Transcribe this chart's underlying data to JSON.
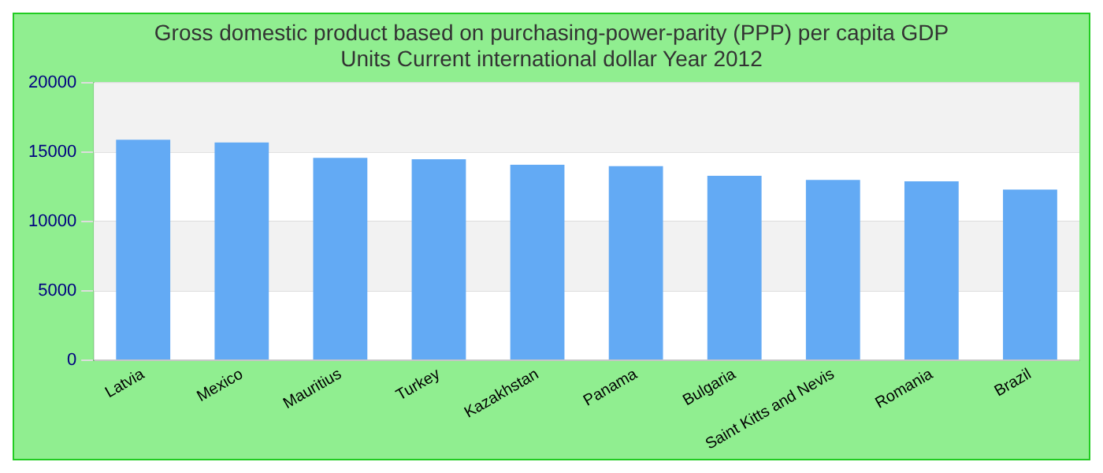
{
  "chart_data": {
    "type": "bar",
    "title": "Gross domestic product based on purchasing-power-parity (PPP) per capita GDP Units Current international dollar Year 2012",
    "categories": [
      "Latvia",
      "Mexico",
      "Mauritius",
      "Turkey",
      "Kazakhstan",
      "Panama",
      "Bulgaria",
      "Saint Kitts and Nevis",
      "Romania",
      "Brazil"
    ],
    "values": [
      15900,
      15700,
      14600,
      14500,
      14100,
      14000,
      13300,
      13000,
      12900,
      12300
    ],
    "color": "#63aaf4",
    "ylim": [
      0,
      20000
    ],
    "yticks": [
      0,
      5000,
      10000,
      15000,
      20000
    ],
    "grid": "y",
    "legend": false
  }
}
